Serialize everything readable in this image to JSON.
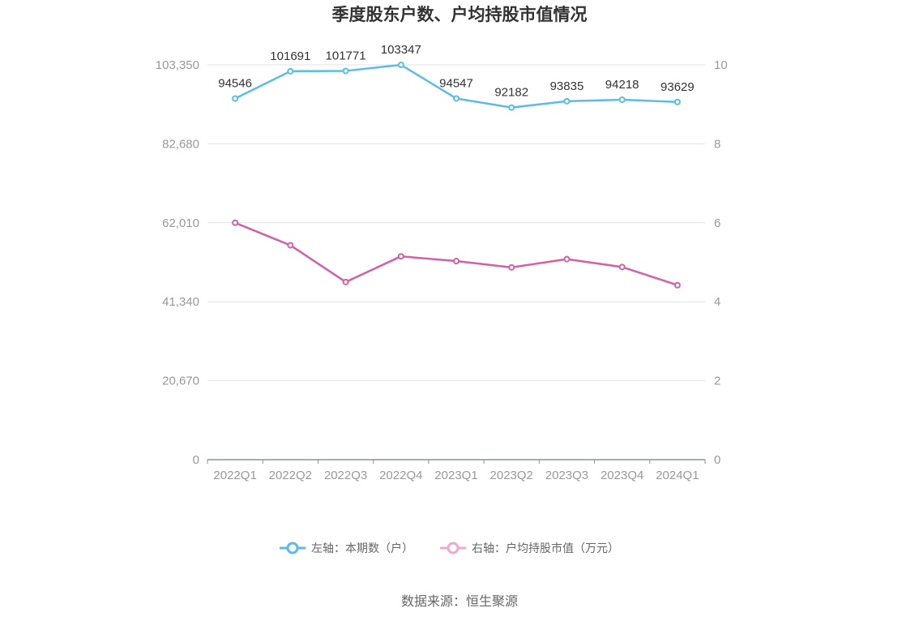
{
  "chart_data": {
    "type": "line",
    "title": "季度股东户数、户均持股市值情况",
    "categories": [
      "2022Q1",
      "2022Q2",
      "2022Q3",
      "2022Q4",
      "2023Q1",
      "2023Q2",
      "2023Q3",
      "2023Q4",
      "2024Q1"
    ],
    "left_axis": {
      "ylim": [
        0,
        103350
      ],
      "ticks": [
        0,
        20670,
        41340,
        62010,
        82680,
        103350
      ],
      "tick_labels": [
        "0",
        "20,670",
        "41,340",
        "62,010",
        "82,680",
        "103,350"
      ]
    },
    "right_axis": {
      "ylim": [
        0,
        10
      ],
      "ticks": [
        0,
        2,
        4,
        6,
        8,
        10
      ],
      "tick_labels": [
        "0",
        "2",
        "4",
        "6",
        "8",
        "10"
      ]
    },
    "series": [
      {
        "name": "左轴：本期数（户）",
        "axis": "left",
        "color": "#5bbcec",
        "values": [
          94546,
          101691,
          101771,
          103347,
          94547,
          92182,
          93835,
          94218,
          93629
        ],
        "labels": [
          "94546",
          "101691",
          "101771",
          "103347",
          "94547",
          "92182",
          "93835",
          "94218",
          "93629"
        ]
      },
      {
        "name": "右轴：户均持股市值（万元）",
        "axis": "right",
        "color": "#d55fa8",
        "values": [
          6.0,
          5.43,
          4.5,
          5.15,
          5.03,
          4.87,
          5.08,
          4.88,
          4.42
        ]
      }
    ],
    "grid": true,
    "legend_position": "bottom-center",
    "source": "数据来源：恒生聚源"
  },
  "colors": {
    "left_series": "#5bbcec",
    "right_series": "#d55fa8",
    "right_legend": "#f0a9d2",
    "grid": "#e0e3ee",
    "axis": "#8a8fa8"
  }
}
